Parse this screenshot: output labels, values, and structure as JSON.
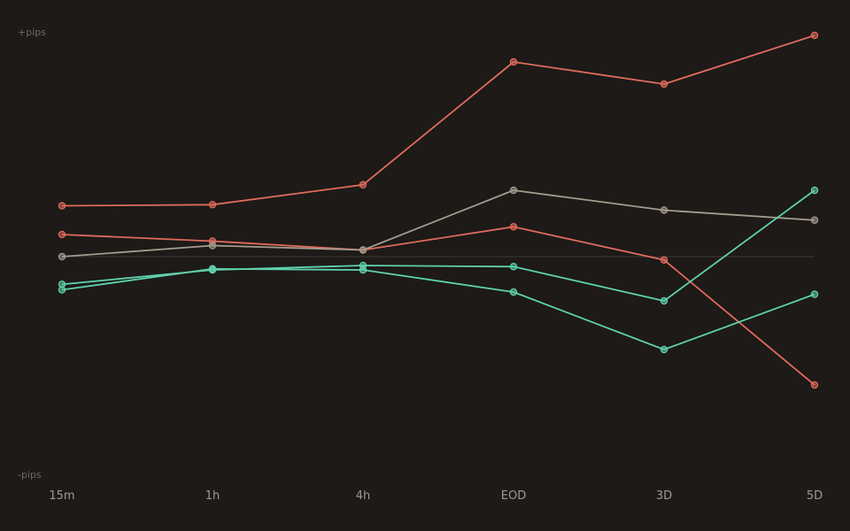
{
  "chart_data": {
    "type": "line",
    "categories": [
      "15m",
      "1h",
      "4h",
      "EOD",
      "3D",
      "5D"
    ],
    "y_top_label": "+pips",
    "y_bottom_label": "-pips",
    "ylim": [
      -100,
      100
    ],
    "baseline": 0,
    "grid": false,
    "legend": "none",
    "series": [
      {
        "color": "#e06b5d",
        "values": [
          23,
          23.5,
          32.5,
          88,
          78,
          100
        ]
      },
      {
        "color": "#e06b5d",
        "values": [
          10,
          7,
          3,
          13.5,
          -1.5,
          -58
        ]
      },
      {
        "color": "#a59a8e",
        "values": [
          0,
          5,
          3,
          30,
          21,
          16.5
        ]
      },
      {
        "color": "#5fd1ad",
        "values": [
          -12.5,
          -6,
          -4,
          -4.5,
          -20,
          30
        ]
      },
      {
        "color": "#5fd1ad",
        "values": [
          -15,
          -5.5,
          -6,
          -16,
          -42,
          -17
        ]
      }
    ]
  },
  "colors": {
    "background": "#1d1a17",
    "baseline": "#38332f"
  }
}
